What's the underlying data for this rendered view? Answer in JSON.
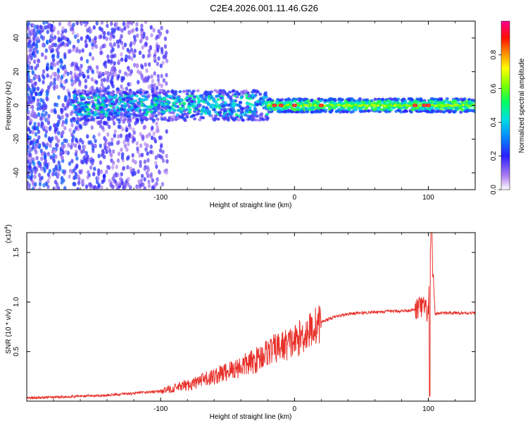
{
  "title": "C2E4.2026.001.11.46.G26",
  "chart_data": [
    {
      "type": "heatmap",
      "name": "spectrogram",
      "xlabel": "Height of straight line (km)",
      "ylabel": "Frequency (Hz)",
      "xlim": [
        -200,
        135
      ],
      "ylim": [
        -50,
        50
      ],
      "xticks": [
        -100,
        0,
        100
      ],
      "xtick_labels": [
        "-100",
        "0",
        "100"
      ],
      "yticks": [
        40,
        20,
        0,
        -20,
        -40
      ],
      "ytick_labels": [
        "40",
        "20",
        "0",
        "-20",
        "-40"
      ],
      "colorbar": {
        "label": "Normalized spectral amplitude",
        "range": [
          0,
          1
        ],
        "ticks": [
          0.0,
          0.2,
          0.4,
          0.6,
          0.8
        ],
        "tick_labels": [
          "0.0",
          "0.2",
          "0.4",
          "0.6",
          "0.8"
        ],
        "colors": [
          "#ffffff",
          "#8a2be2",
          "#2020ff",
          "#00c8ff",
          "#00ff80",
          "#80ff00",
          "#ffff00",
          "#ff8000",
          "#ff0000",
          "#ff0080"
        ]
      },
      "description_points": {
        "main_band_center_hz": 0,
        "bright_spots_km": [
          -15,
          -10,
          0,
          20,
          90,
          97,
          100
        ]
      }
    },
    {
      "type": "line",
      "name": "snr",
      "xlabel": "Height of straight line (km)",
      "ylabel": "SNR (10 * v/v)",
      "y_multiplier": "(x10",
      "y_multiplier_exp": "4",
      "y_multiplier_close": ")",
      "xlim": [
        -200,
        135
      ],
      "ylim": [
        0,
        1.7
      ],
      "xticks": [
        -100,
        0,
        100
      ],
      "xtick_labels": [
        "-100",
        "0",
        "100"
      ],
      "yticks": [
        0.5,
        1.0,
        1.5
      ],
      "ytick_labels": [
        "0.5",
        "1.0",
        "1.5"
      ],
      "series": [
        {
          "name": "SNR",
          "color": "#e8302a",
          "x": [
            -200,
            -180,
            -160,
            -140,
            -120,
            -100,
            -90,
            -80,
            -70,
            -60,
            -50,
            -40,
            -30,
            -20,
            -10,
            0,
            10,
            20,
            30,
            40,
            60,
            80,
            90,
            95,
            100,
            102,
            105,
            110,
            120,
            135
          ],
          "y": [
            0.03,
            0.04,
            0.05,
            0.06,
            0.08,
            0.1,
            0.13,
            0.16,
            0.2,
            0.25,
            0.3,
            0.35,
            0.4,
            0.5,
            0.55,
            0.6,
            0.7,
            0.8,
            0.85,
            0.88,
            0.9,
            0.91,
            0.92,
            0.95,
            0.9,
            1.7,
            0.88,
            0.89,
            0.89,
            0.89
          ]
        }
      ]
    }
  ]
}
